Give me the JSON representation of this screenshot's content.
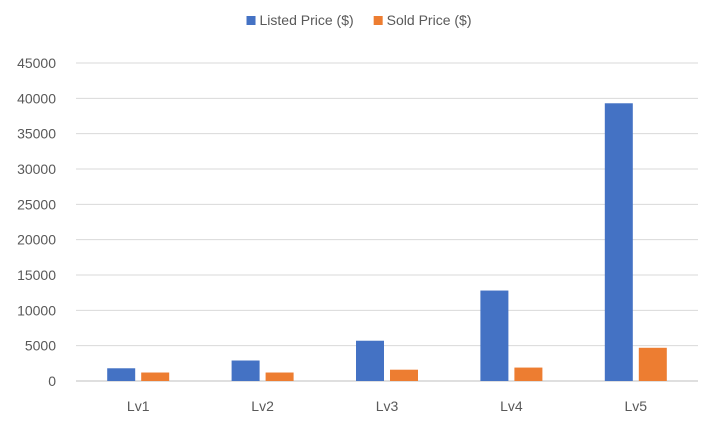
{
  "chart_data": {
    "type": "bar",
    "title": "",
    "xlabel": "",
    "ylabel": "",
    "categories": [
      "Lv1",
      "Lv2",
      "Lv3",
      "Lv4",
      "Lv5"
    ],
    "series": [
      {
        "name": "Listed Price ($)",
        "color": "#4472c4",
        "values": [
          1800,
          2900,
          5700,
          12800,
          39300
        ]
      },
      {
        "name": "Sold Price ($)",
        "color": "#ed7d31",
        "values": [
          1200,
          1200,
          1600,
          1900,
          4700
        ]
      }
    ],
    "ylim": [
      0,
      45000
    ],
    "yticks": [
      0,
      5000,
      10000,
      15000,
      20000,
      25000,
      30000,
      35000,
      40000,
      45000
    ],
    "grid": true,
    "legend_position": "top-center"
  }
}
